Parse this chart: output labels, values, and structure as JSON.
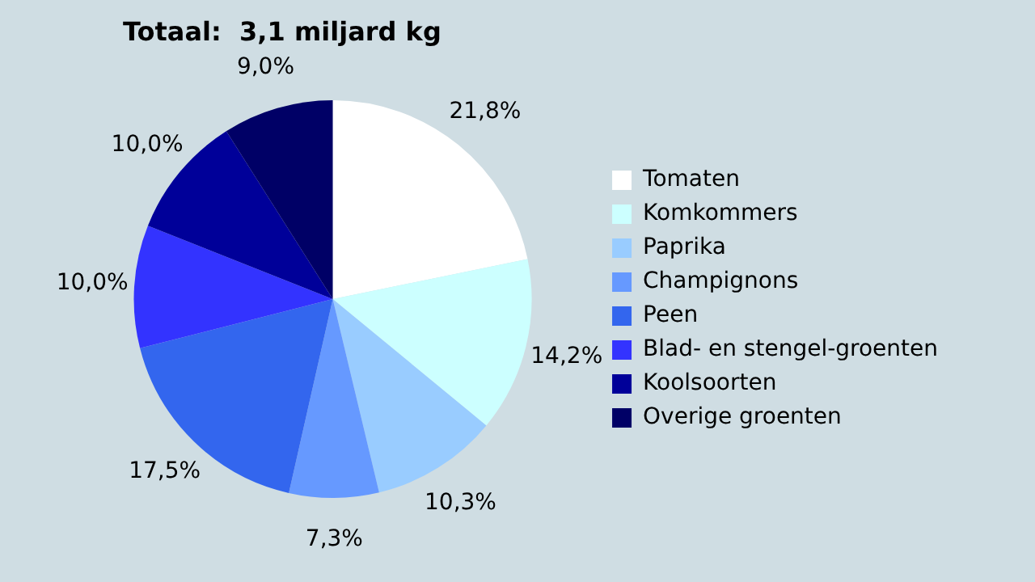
{
  "chart_data": {
    "type": "pie",
    "title": "Totaal:  3,1 miljard kg",
    "categories": [
      "Tomaten",
      "Komkommers",
      "Paprika",
      "Champignons",
      "Peen",
      "Blad- en stengel-groenten",
      "Koolsoorten",
      "Overige groenten"
    ],
    "values": [
      21.8,
      14.2,
      10.3,
      7.3,
      17.5,
      10.0,
      10.0,
      9.0
    ],
    "value_labels": [
      "21,8%",
      "14,2%",
      "10,3%",
      "7,3%",
      "17,5%",
      "10,0%",
      "10,0%",
      "9,0%"
    ],
    "colors": [
      "#ffffff",
      "#ccffff",
      "#99ccff",
      "#6699ff",
      "#3366ee",
      "#3333ff",
      "#000099",
      "#000066"
    ],
    "legend": "right"
  }
}
